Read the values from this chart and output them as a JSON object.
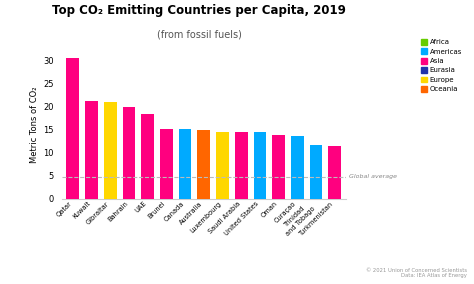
{
  "title_part1": "Top CO",
  "title_part2": " Emitting Countries per Capita, 2019",
  "subtitle": "(from fossil fuels)",
  "ylabel": "Metric Tons of CO₂",
  "countries": [
    "Qatar",
    "Kuwait",
    "Gibraltar",
    "Bahrain",
    "UAE",
    "Brunei",
    "Canada",
    "Australia",
    "Luxembourg",
    "Saudi Arabia",
    "United States",
    "Oman",
    "Curaçao",
    "Trinidad\nand Tobago",
    "Turkmenistan"
  ],
  "values": [
    30.6,
    21.2,
    21.0,
    19.9,
    18.3,
    15.1,
    15.1,
    14.9,
    14.5,
    14.4,
    14.4,
    13.8,
    13.5,
    11.6,
    11.4
  ],
  "colors": [
    "#FF007F",
    "#FF007F",
    "#FFD700",
    "#FF007F",
    "#FF007F",
    "#FF007F",
    "#00AAFF",
    "#FF6600",
    "#FFD700",
    "#FF007F",
    "#00AAFF",
    "#FF007F",
    "#00AAFF",
    "#00AAFF",
    "#FF007F"
  ],
  "global_average": 4.8,
  "legend_items": [
    {
      "label": "Africa",
      "color": "#66CC00"
    },
    {
      "label": "Americas",
      "color": "#00AAFF"
    },
    {
      "label": "Asia",
      "color": "#FF007F"
    },
    {
      "label": "Eurasia",
      "color": "#2233AA"
    },
    {
      "label": "Europe",
      "color": "#FFD700"
    },
    {
      "label": "Oceania",
      "color": "#FF6600"
    }
  ],
  "ylim": [
    0,
    32
  ],
  "yticks": [
    0,
    5,
    10,
    15,
    20,
    25,
    30
  ],
  "background_color": "#FFFFFF",
  "annotation_text": "© 2021 Union of Concerned Scientists\nData: IEA Atlas of Energy",
  "global_avg_label": "Global average"
}
